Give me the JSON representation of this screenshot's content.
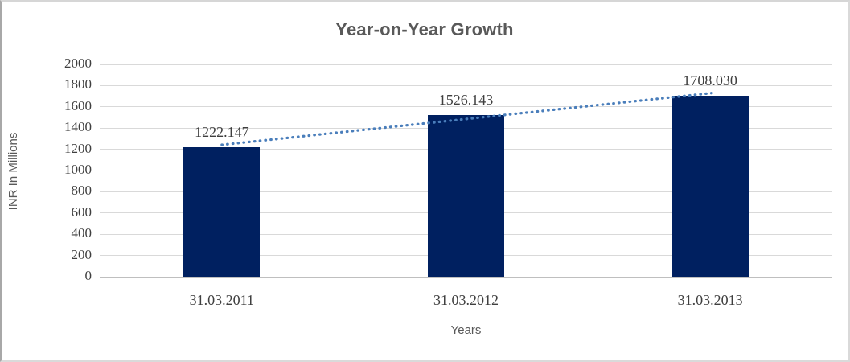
{
  "chart_data": {
    "type": "bar",
    "title": "Year-on-Year Growth",
    "xlabel": "Years",
    "ylabel": "INR In Millions",
    "categories": [
      "31.03.2011",
      "31.03.2012",
      "31.03.2013"
    ],
    "values": [
      1222.147,
      1526.143,
      1708.03
    ],
    "data_labels": [
      "1222.147",
      "1526.143",
      "1708.030"
    ],
    "ylim": [
      0,
      2000
    ],
    "ytick_step": 200,
    "ytick_labels": [
      "0",
      "200",
      "400",
      "600",
      "800",
      "1000",
      "1200",
      "1400",
      "1600",
      "1800",
      "2000"
    ],
    "grid": true,
    "legend": false,
    "trendline": {
      "type": "linear",
      "style": "dotted"
    },
    "colors": {
      "bar": "#002060",
      "trendline": "#4a7ebb",
      "gridline": "#d9d9d9",
      "axis_line": "#bfbfbf",
      "title_text": "#595959",
      "axis_title_text": "#595959",
      "number_text": "#3f3f3f"
    }
  }
}
